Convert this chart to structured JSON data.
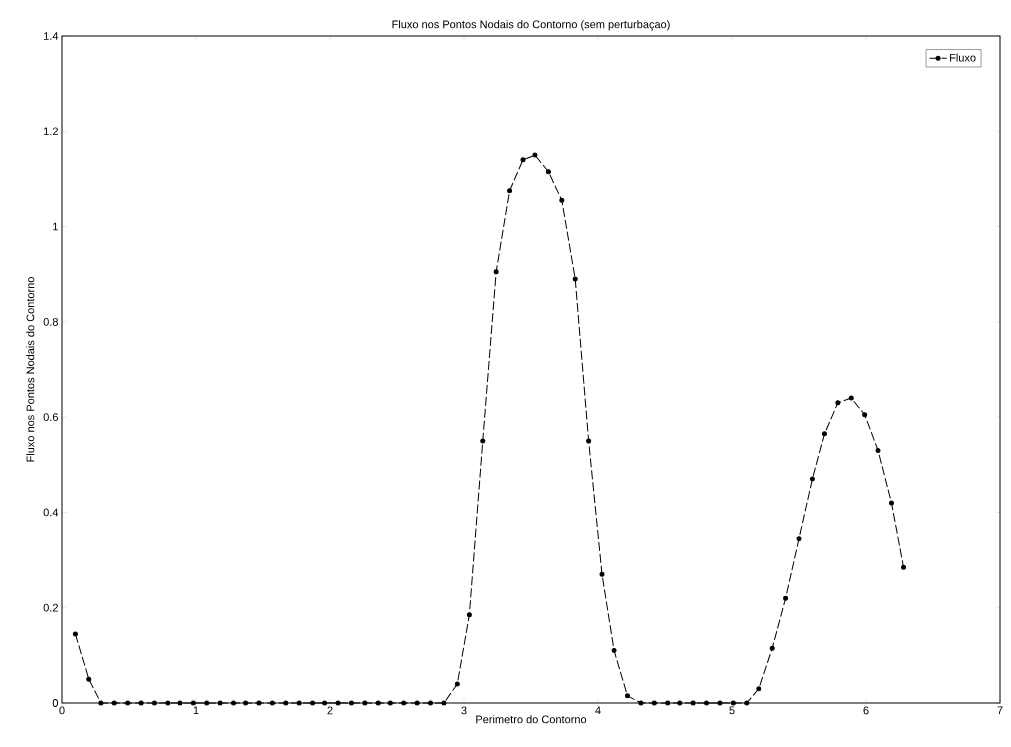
{
  "chart_data": {
    "type": "line",
    "title": "Fluxo nos Pontos Nodais do Contorno (sem perturbaçao)",
    "xlabel": "Perimetro do Contorno",
    "ylabel": "Fluxo  nos Pontos Nodais do Contorno",
    "xlim": [
      0,
      7
    ],
    "ylim": [
      0,
      1.4
    ],
    "xticks": [
      0,
      1,
      2,
      3,
      4,
      5,
      6,
      7
    ],
    "yticks": [
      0,
      0.2,
      0.4,
      0.6,
      0.8,
      1,
      1.2,
      1.4
    ],
    "grid": false,
    "legend": "top right",
    "marker": "circle",
    "line_style": "dashed",
    "series": [
      {
        "name": "Fluxo",
        "color": "#000000",
        "x": [
          0.1,
          0.2,
          0.29,
          0.39,
          0.49,
          0.59,
          0.69,
          0.79,
          0.88,
          0.98,
          1.08,
          1.18,
          1.28,
          1.37,
          1.47,
          1.57,
          1.67,
          1.77,
          1.87,
          1.96,
          2.06,
          2.16,
          2.26,
          2.36,
          2.45,
          2.55,
          2.65,
          2.75,
          2.85,
          2.95,
          3.04,
          3.14,
          3.24,
          3.34,
          3.44,
          3.53,
          3.63,
          3.73,
          3.83,
          3.93,
          4.03,
          4.12,
          4.22,
          4.32,
          4.42,
          4.52,
          4.61,
          4.71,
          4.81,
          4.91,
          5.01,
          5.11,
          5.2,
          5.3,
          5.4,
          5.5,
          5.6,
          5.69,
          5.79,
          5.89,
          5.99,
          6.09,
          6.19,
          6.28
        ],
        "values": [
          0.145,
          0.05,
          0,
          0,
          0,
          0,
          0,
          0,
          0,
          0,
          0,
          0,
          0,
          0,
          0,
          0,
          0,
          0,
          0,
          0,
          0,
          0,
          0,
          0,
          0,
          0,
          0,
          0,
          0,
          0.04,
          0.185,
          0.55,
          0.905,
          1.075,
          1.14,
          1.15,
          1.115,
          1.055,
          0.89,
          0.55,
          0.27,
          0.11,
          0.015,
          0,
          0,
          0,
          0,
          0,
          0,
          0,
          0,
          0,
          0.03,
          0.115,
          0.22,
          0.345,
          0.47,
          0.565,
          0.63,
          0.64,
          0.605,
          0.53,
          0.42,
          0.285
        ]
      }
    ]
  }
}
